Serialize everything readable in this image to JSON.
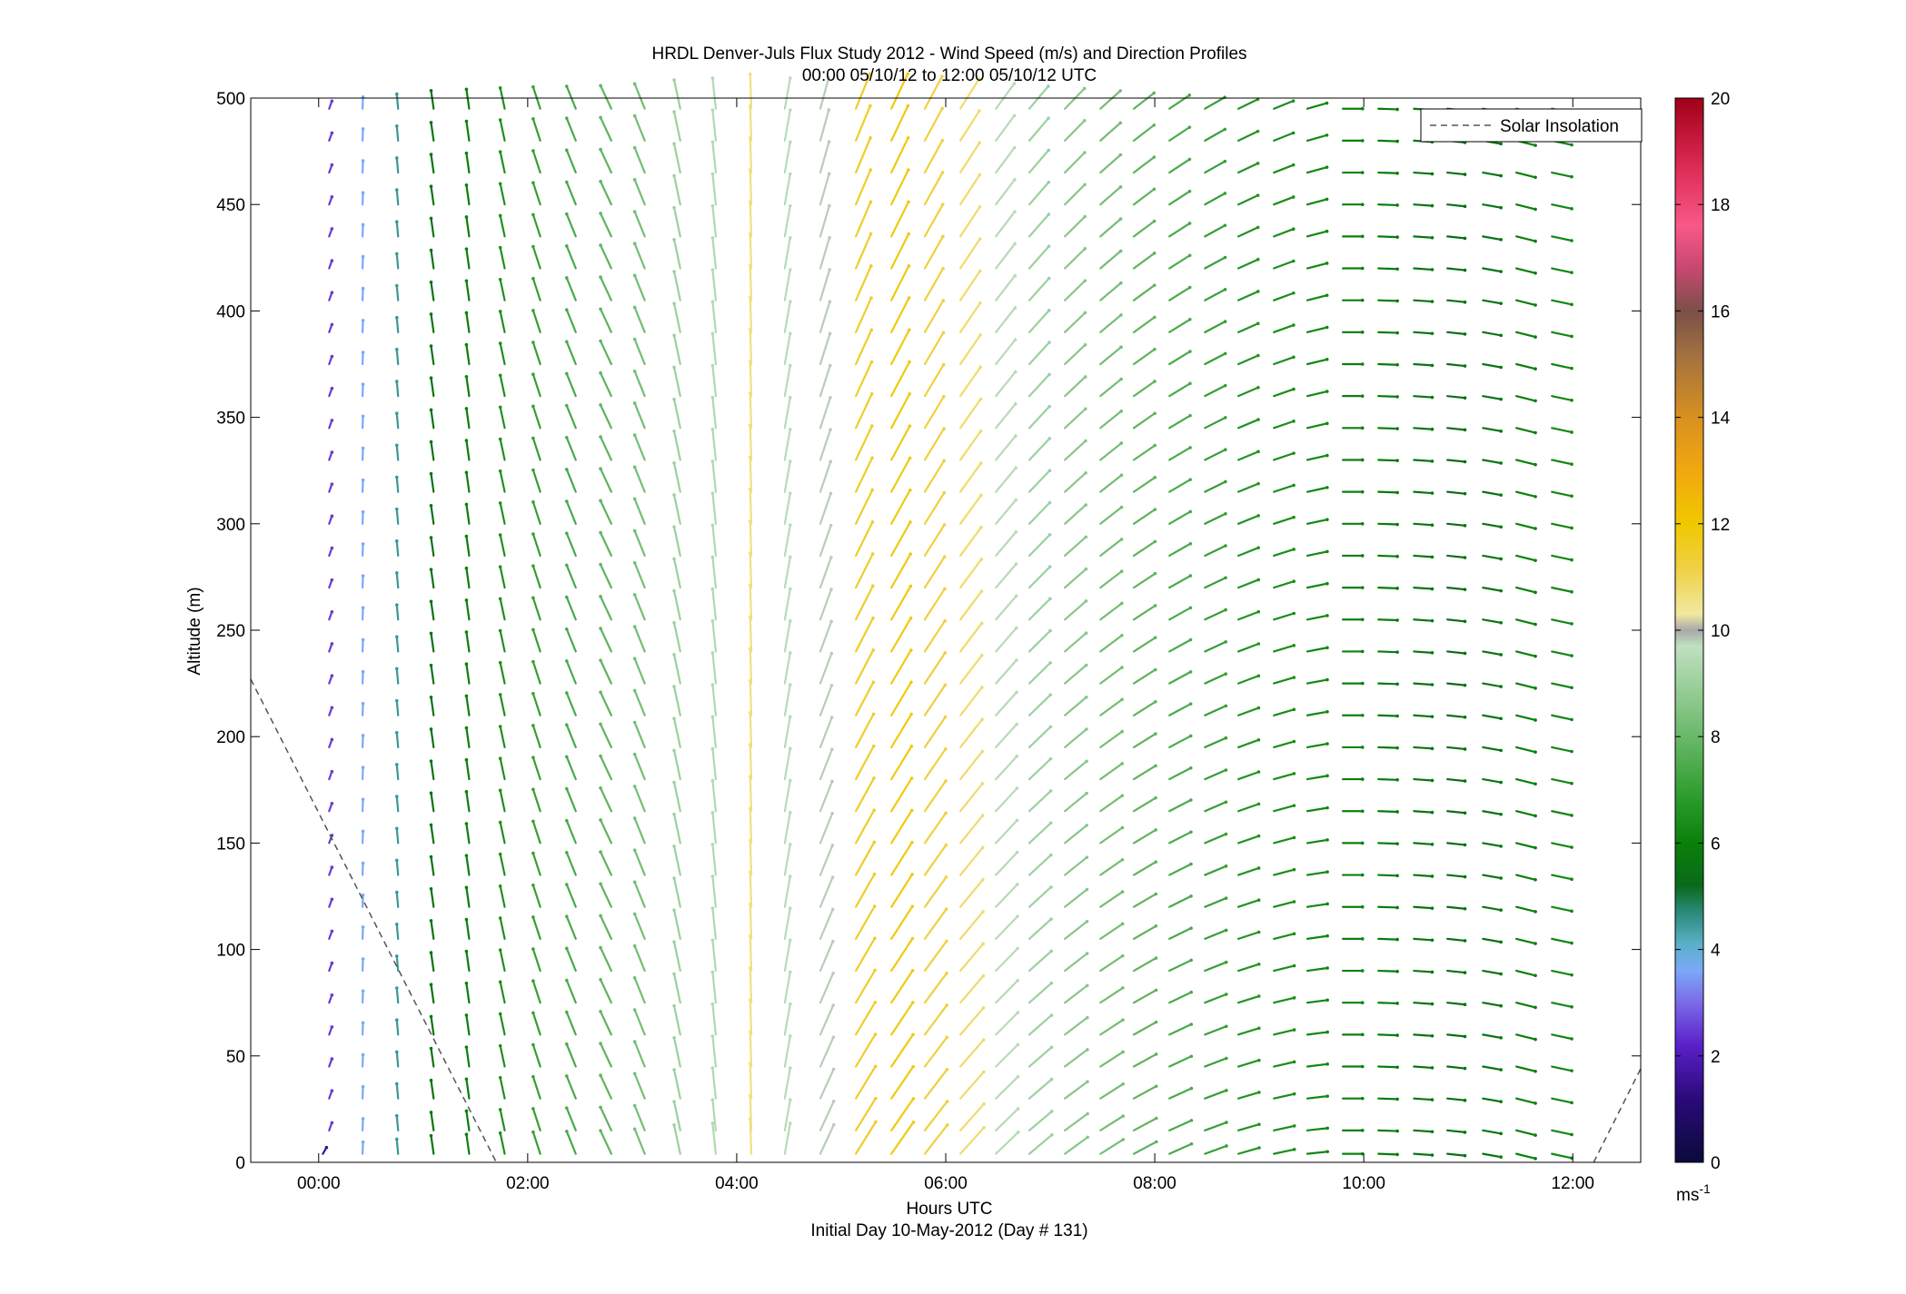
{
  "chart_data": {
    "type": "wind_barb_profile",
    "title_line1": "HRDL Denver-Juls Flux Study 2012 - Wind Speed (m/s) and Direction Profiles",
    "title_line2": "00:00 05/10/12 to 12:00 05/10/12  UTC",
    "xlabel": "Hours UTC",
    "xlabel_sub": "Initial Day 10-May-2012 (Day # 131)",
    "ylabel": "Altitude (m)",
    "xlim_hours": [
      -0.65,
      12.65
    ],
    "ylim": [
      0,
      500
    ],
    "xticks": [
      {
        "value": 0,
        "label": "00:00"
      },
      {
        "value": 2,
        "label": "02:00"
      },
      {
        "value": 4,
        "label": "04:00"
      },
      {
        "value": 6,
        "label": "06:00"
      },
      {
        "value": 8,
        "label": "08:00"
      },
      {
        "value": 10,
        "label": "10:00"
      },
      {
        "value": 12,
        "label": "12:00"
      }
    ],
    "yticks": [
      0,
      50,
      100,
      150,
      200,
      250,
      300,
      350,
      400,
      450,
      500
    ],
    "legend": {
      "label": "Solar Insolation",
      "placement": "top-right"
    },
    "colorbar": {
      "range": [
        0,
        20
      ],
      "ticks": [
        0,
        2,
        4,
        6,
        8,
        10,
        12,
        14,
        16,
        18,
        20
      ],
      "unit_label": "ms",
      "unit_exp": "-1",
      "stops": [
        {
          "v": 0,
          "c": "#0a0a3a"
        },
        {
          "v": 1.2,
          "c": "#2a0a7a"
        },
        {
          "v": 2.2,
          "c": "#5a20c8"
        },
        {
          "v": 3,
          "c": "#7a6ae8"
        },
        {
          "v": 3.6,
          "c": "#7aa8f8"
        },
        {
          "v": 4.1,
          "c": "#5ab0c8"
        },
        {
          "v": 4.7,
          "c": "#2a8a7a"
        },
        {
          "v": 5.2,
          "c": "#0a6a1a"
        },
        {
          "v": 6,
          "c": "#0a800a"
        },
        {
          "v": 6.8,
          "c": "#2a9a2a"
        },
        {
          "v": 8,
          "c": "#6ab86a"
        },
        {
          "v": 9.7,
          "c": "#c0e0c0"
        },
        {
          "v": 10,
          "c": "#a8a8a8"
        },
        {
          "v": 10.3,
          "c": "#f0e8a0"
        },
        {
          "v": 11.2,
          "c": "#f0d040"
        },
        {
          "v": 12,
          "c": "#f0c800"
        },
        {
          "v": 13,
          "c": "#f0a810"
        },
        {
          "v": 14,
          "c": "#d89020"
        },
        {
          "v": 15.2,
          "c": "#a07040"
        },
        {
          "v": 16,
          "c": "#7a5048"
        },
        {
          "v": 16.8,
          "c": "#c84870"
        },
        {
          "v": 17.6,
          "c": "#f85888"
        },
        {
          "v": 18.8,
          "c": "#d82850"
        },
        {
          "v": 20,
          "c": "#a00018"
        }
      ]
    },
    "solar_insolation_segments": [
      {
        "x": [
          -0.65,
          1.7
        ],
        "y": [
          227,
          0
        ]
      },
      {
        "x": [
          12.2,
          12.65
        ],
        "y": [
          0,
          44
        ]
      }
    ],
    "profile_times_hours": [
      0.04,
      0.1,
      0.42,
      0.76,
      1.1,
      1.44,
      1.78,
      2.12,
      2.46,
      2.8,
      3.12,
      3.46,
      3.8,
      4.14,
      4.46,
      4.8,
      5.14,
      5.48,
      5.8,
      6.14,
      6.48,
      6.8,
      7.14,
      7.48,
      7.8,
      8.14,
      8.48,
      8.8,
      9.14,
      9.46,
      9.8,
      10.14,
      10.48,
      10.8,
      11.14,
      11.46,
      11.8
    ],
    "altitude_levels_m": [
      4,
      15,
      30,
      45,
      60,
      75,
      90,
      105,
      120,
      135,
      150,
      165,
      180,
      195,
      210,
      225,
      240,
      255,
      270,
      285,
      300,
      315,
      330,
      345,
      360,
      375,
      390,
      405,
      420,
      435,
      450,
      465,
      480,
      495
    ],
    "wind_speed_description": "speeds in m/s, direction as vector angle; values estimated from colours and orientation",
    "profiles": [
      {
        "t": 0.04,
        "alt_from": 0,
        "alt_to": 10,
        "speed": 1.5,
        "dir_deg": 60
      },
      {
        "t": 0.1,
        "alt_from": 10,
        "alt_to": 500,
        "speed": 2.5,
        "dir_deg": 70
      },
      {
        "t": 0.42,
        "alt_from": 0,
        "alt_to": 500,
        "speed": 3.6,
        "dir_deg": 88
      },
      {
        "t": 0.76,
        "alt_from": 0,
        "alt_to": 500,
        "speed": 4.5,
        "dir_deg": 95
      },
      {
        "t": 1.1,
        "alt_from": 0,
        "alt_to": 500,
        "speed": 5.6,
        "dir_deg": 98
      },
      {
        "t": 1.44,
        "alt_from": 0,
        "alt_to": 500,
        "speed": 6.0,
        "dir_deg": 98
      },
      {
        "t": 1.78,
        "alt_from": 0,
        "alt_to": 500,
        "speed": 6.5,
        "dir_deg": 102
      },
      {
        "t": 2.12,
        "alt_from": 0,
        "alt_to": 500,
        "speed": 7.0,
        "dir_deg": 108
      },
      {
        "t": 2.46,
        "alt_from": 0,
        "alt_to": 500,
        "speed": 7.4,
        "dir_deg": 112
      },
      {
        "t": 2.8,
        "alt_from": 0,
        "alt_to": 500,
        "speed": 7.8,
        "dir_deg": 115
      },
      {
        "t": 3.12,
        "alt_from": 0,
        "alt_to": 500,
        "speed": 8.2,
        "dir_deg": 112
      },
      {
        "t": 3.46,
        "alt_from": 0,
        "alt_to": 500,
        "speed": 9.0,
        "dir_deg": 102
      },
      {
        "t": 3.8,
        "alt_from": 0,
        "alt_to": 500,
        "speed": 9.4,
        "dir_deg": 96
      },
      {
        "t": 4.14,
        "alt_from": 0,
        "alt_to": 500,
        "speed": 10.6,
        "dir_deg": 92
      },
      {
        "t": 4.46,
        "alt_from": 0,
        "alt_to": 500,
        "speed": 9.5,
        "dir_deg": 80
      },
      {
        "t": 4.8,
        "alt_from": 0,
        "alt_to": 500,
        "speed": 9.8,
        "dir_deg": 65
      },
      {
        "t": 5.14,
        "alt_from": 0,
        "alt_to": 500,
        "speed": 11.5,
        "dir_deg": 58
      },
      {
        "t": 5.48,
        "alt_from": 0,
        "alt_to": 500,
        "speed": 11.8,
        "dir_deg": 55
      },
      {
        "t": 5.8,
        "alt_from": 0,
        "alt_to": 500,
        "speed": 11.2,
        "dir_deg": 52
      },
      {
        "t": 6.14,
        "alt_from": 0,
        "alt_to": 500,
        "speed": 10.8,
        "dir_deg": 48
      },
      {
        "t": 6.48,
        "alt_from": 0,
        "alt_to": 500,
        "speed": 9.5,
        "dir_deg": 44
      },
      {
        "t": 6.8,
        "alt_from": 0,
        "alt_to": 500,
        "speed": 9.0,
        "dir_deg": 40
      },
      {
        "t": 7.14,
        "alt_from": 0,
        "alt_to": 500,
        "speed": 8.6,
        "dir_deg": 36
      },
      {
        "t": 7.48,
        "alt_from": 0,
        "alt_to": 500,
        "speed": 8.2,
        "dir_deg": 32
      },
      {
        "t": 7.8,
        "alt_from": 0,
        "alt_to": 500,
        "speed": 7.8,
        "dir_deg": 28
      },
      {
        "t": 8.14,
        "alt_from": 0,
        "alt_to": 500,
        "speed": 7.4,
        "dir_deg": 24
      },
      {
        "t": 8.48,
        "alt_from": 0,
        "alt_to": 500,
        "speed": 7.0,
        "dir_deg": 20
      },
      {
        "t": 8.8,
        "alt_from": 0,
        "alt_to": 500,
        "speed": 6.6,
        "dir_deg": 16
      },
      {
        "t": 9.14,
        "alt_from": 0,
        "alt_to": 500,
        "speed": 6.4,
        "dir_deg": 12
      },
      {
        "t": 9.46,
        "alt_from": 0,
        "alt_to": 500,
        "speed": 6.2,
        "dir_deg": 6
      },
      {
        "t": 9.8,
        "alt_from": 0,
        "alt_to": 500,
        "speed": 6.0,
        "dir_deg": 0
      },
      {
        "t": 10.14,
        "alt_from": 0,
        "alt_to": 500,
        "speed": 5.8,
        "dir_deg": -2
      },
      {
        "t": 10.48,
        "alt_from": 0,
        "alt_to": 500,
        "speed": 5.6,
        "dir_deg": -4
      },
      {
        "t": 10.8,
        "alt_from": 0,
        "alt_to": 500,
        "speed": 5.4,
        "dir_deg": -6
      },
      {
        "t": 11.14,
        "alt_from": 0,
        "alt_to": 500,
        "speed": 5.6,
        "dir_deg": -10
      },
      {
        "t": 11.46,
        "alt_from": 0,
        "alt_to": 500,
        "speed": 6.0,
        "dir_deg": -14
      },
      {
        "t": 11.8,
        "alt_from": 0,
        "alt_to": 500,
        "speed": 6.2,
        "dir_deg": -12
      }
    ]
  }
}
